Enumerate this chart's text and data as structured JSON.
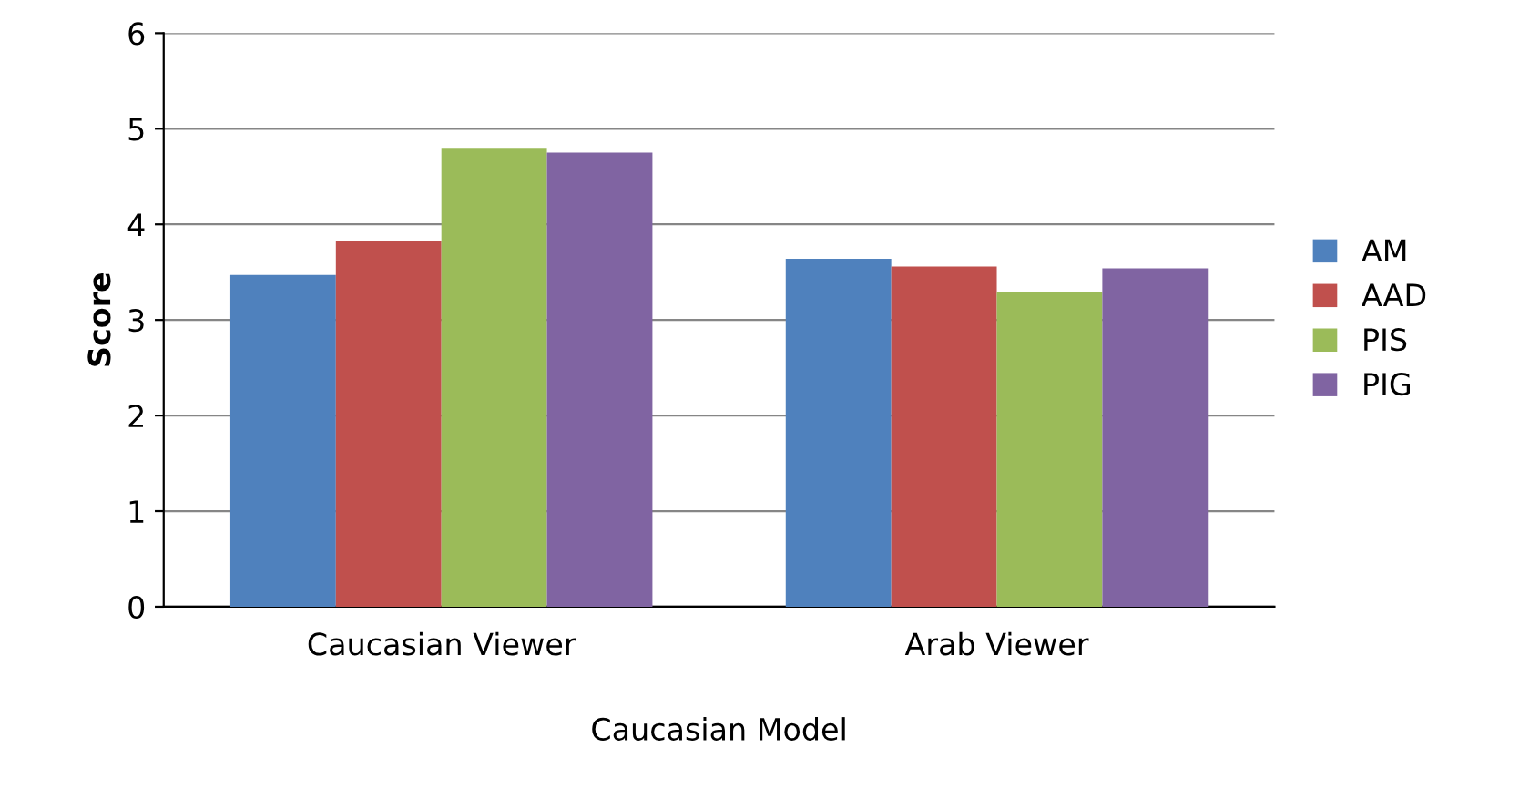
{
  "chart_data": {
    "type": "bar",
    "ylabel": "Score",
    "xlabel": "Caucasian Model",
    "categories": [
      "Caucasian Viewer",
      "Arab Viewer"
    ],
    "series": [
      {
        "name": "AM",
        "color": "#4f81bd",
        "values": [
          3.47,
          3.64
        ]
      },
      {
        "name": "AAD",
        "color": "#c0504d",
        "values": [
          3.82,
          3.56
        ]
      },
      {
        "name": "PIS",
        "color": "#9bbb59",
        "values": [
          4.8,
          3.29
        ]
      },
      {
        "name": "PIG",
        "color": "#8064a2",
        "values": [
          4.75,
          3.54
        ]
      }
    ],
    "ylim": [
      0,
      6
    ],
    "yticks": [
      0,
      1,
      2,
      3,
      4,
      5,
      6
    ],
    "grid": "y",
    "legend": "right"
  }
}
